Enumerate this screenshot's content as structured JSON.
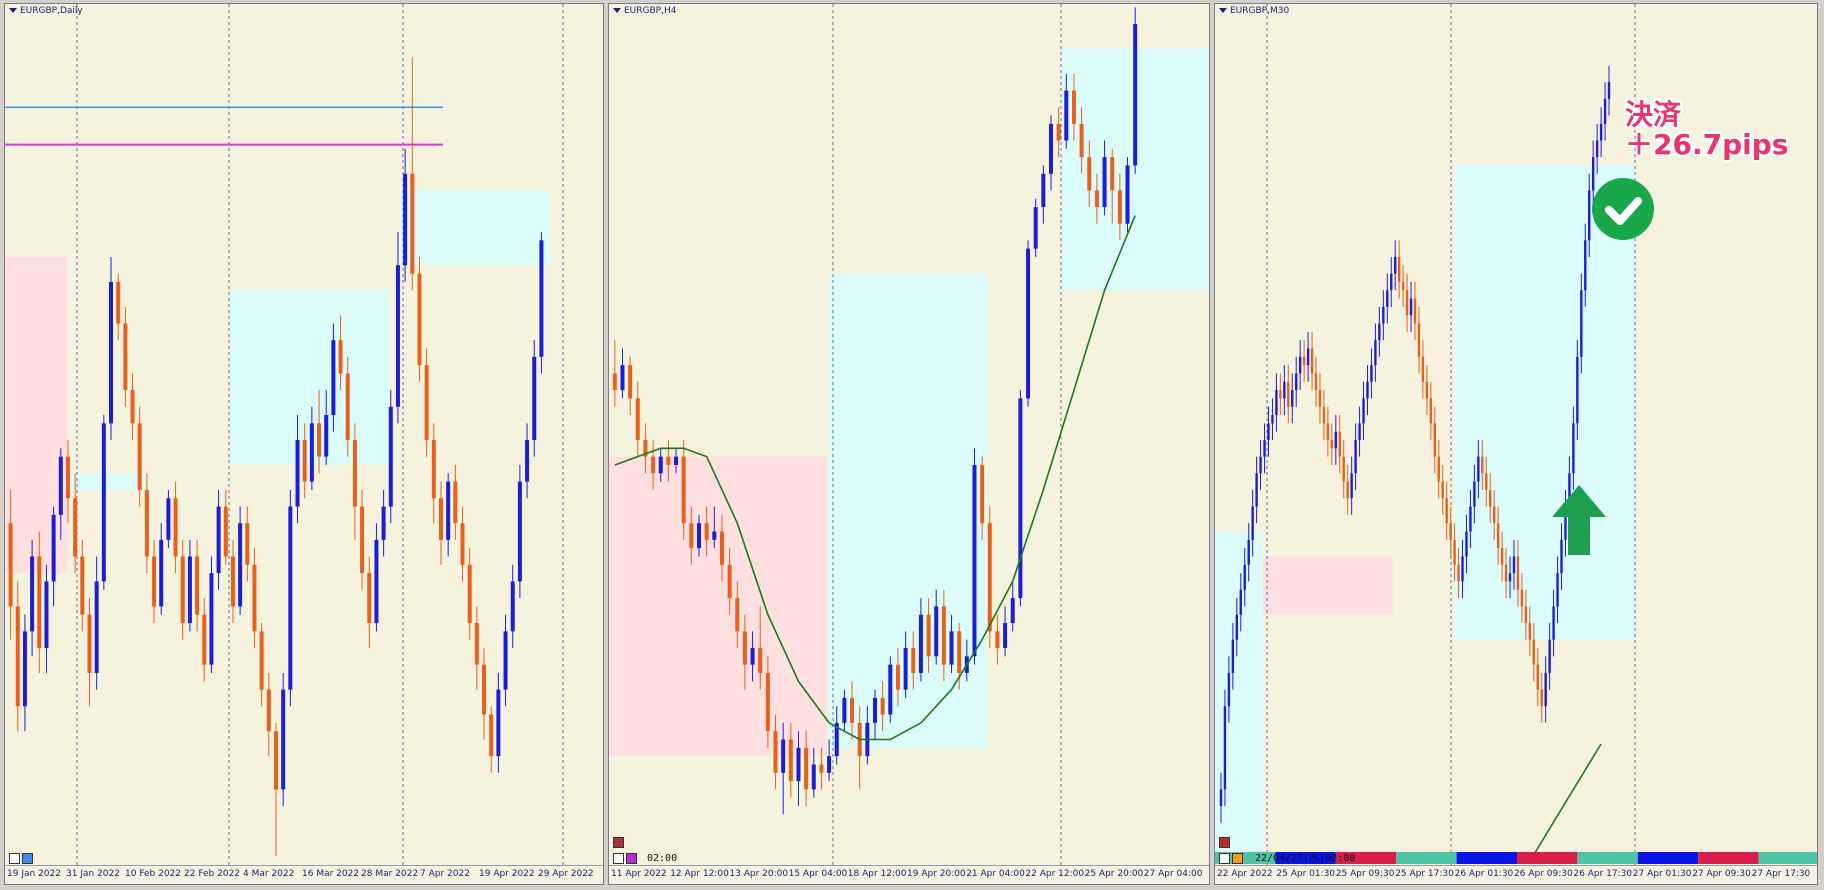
{
  "colors": {
    "bg": "#f5f3de",
    "bull": "#1d1dd8",
    "bear": "#e8601c",
    "zone_blue": "#dcfbfb",
    "zone_red": "#fde0df",
    "ma": "#1a7a1a",
    "hline_blue": "#3b8fe8",
    "hline_magenta": "#d63ad6"
  },
  "charts": [
    {
      "title": "EURGBP,Daily",
      "ticks": [
        "19 Jan 2022",
        "31 Jan 2022",
        "10 Feb 2022",
        "22 Feb 2022",
        "4 Mar 2022",
        "16 Mar 2022",
        "28 Mar 2022",
        "7 Apr 2022",
        "19 Apr 2022",
        "29 Apr 2022"
      ]
    },
    {
      "title": "EURGBP,H4",
      "ticks": [
        "11 Apr 2022",
        "12 Apr 12:00",
        "13 Apr 20:00",
        "15 Apr 04:00",
        "18 Apr 12:00",
        "19 Apr 20:00",
        "21 Apr 04:00",
        "22 Apr 12:00",
        "25 Apr 20:00",
        "27 Apr 04:00"
      ],
      "time_label": "02:00"
    },
    {
      "title": "EURGBP,M30",
      "ticks": [
        "22 Apr 2022",
        "25 Apr 01:30",
        "25 Apr 09:30",
        "25 Apr 17:30",
        "26 Apr 01:30",
        "26 Apr 09:30",
        "26 Apr 17:30",
        "27 Apr 01:30",
        "27 Apr 09:30",
        "27 Apr 17:30"
      ],
      "time_label": "22/04/27(水)02:00"
    }
  ],
  "annotation": {
    "line1": "決済",
    "line2": "＋26.7pips"
  },
  "chart_data": [
    {
      "type": "candlestick",
      "title": "EURGBP,Daily",
      "x_ticks": [
        "19 Jan 2022",
        "31 Jan 2022",
        "10 Feb 2022",
        "22 Feb 2022",
        "4 Mar 2022",
        "16 Mar 2022",
        "28 Mar 2022",
        "7 Apr 2022",
        "19 Apr 2022",
        "29 Apr 2022"
      ],
      "ohlc": [
        [
          0.4,
          0.3,
          0.44,
          0.26
        ],
        [
          0.3,
          0.18,
          0.33,
          0.15
        ],
        [
          0.18,
          0.27,
          0.29,
          0.15
        ],
        [
          0.27,
          0.36,
          0.38,
          0.24
        ],
        [
          0.36,
          0.25,
          0.39,
          0.22
        ],
        [
          0.25,
          0.33,
          0.35,
          0.22
        ],
        [
          0.33,
          0.41,
          0.42,
          0.3
        ],
        [
          0.41,
          0.48,
          0.49,
          0.38
        ],
        [
          0.48,
          0.43,
          0.5,
          0.4
        ],
        [
          0.43,
          0.36,
          0.46,
          0.34
        ],
        [
          0.36,
          0.29,
          0.38,
          0.27
        ],
        [
          0.29,
          0.22,
          0.31,
          0.18
        ],
        [
          0.22,
          0.33,
          0.36,
          0.2
        ],
        [
          0.33,
          0.52,
          0.53,
          0.32
        ],
        [
          0.52,
          0.69,
          0.72,
          0.5
        ],
        [
          0.69,
          0.64,
          0.7,
          0.62
        ],
        [
          0.64,
          0.56,
          0.66,
          0.54
        ],
        [
          0.56,
          0.52,
          0.58,
          0.5
        ],
        [
          0.52,
          0.44,
          0.54,
          0.42
        ],
        [
          0.44,
          0.36,
          0.46,
          0.34
        ],
        [
          0.36,
          0.3,
          0.38,
          0.28
        ],
        [
          0.3,
          0.38,
          0.4,
          0.29
        ],
        [
          0.38,
          0.43,
          0.44,
          0.37
        ],
        [
          0.43,
          0.36,
          0.45,
          0.34
        ],
        [
          0.36,
          0.28,
          0.38,
          0.26
        ],
        [
          0.28,
          0.36,
          0.38,
          0.27
        ],
        [
          0.36,
          0.29,
          0.38,
          0.27
        ],
        [
          0.29,
          0.23,
          0.31,
          0.21
        ],
        [
          0.23,
          0.34,
          0.36,
          0.22
        ],
        [
          0.34,
          0.42,
          0.44,
          0.32
        ],
        [
          0.42,
          0.36,
          0.44,
          0.35
        ],
        [
          0.36,
          0.3,
          0.38,
          0.28
        ],
        [
          0.3,
          0.4,
          0.42,
          0.29
        ],
        [
          0.4,
          0.35,
          0.42,
          0.33
        ],
        [
          0.35,
          0.27,
          0.37,
          0.25
        ],
        [
          0.27,
          0.2,
          0.28,
          0.18
        ],
        [
          0.2,
          0.15,
          0.22,
          0.12
        ],
        [
          0.15,
          0.08,
          0.16,
          0.0
        ],
        [
          0.08,
          0.2,
          0.22,
          0.06
        ],
        [
          0.2,
          0.42,
          0.44,
          0.18
        ],
        [
          0.42,
          0.5,
          0.53,
          0.4
        ],
        [
          0.5,
          0.45,
          0.52,
          0.43
        ],
        [
          0.45,
          0.52,
          0.54,
          0.44
        ],
        [
          0.52,
          0.48,
          0.56,
          0.46
        ],
        [
          0.48,
          0.53,
          0.56,
          0.47
        ],
        [
          0.53,
          0.62,
          0.64,
          0.51
        ],
        [
          0.62,
          0.58,
          0.65,
          0.56
        ],
        [
          0.58,
          0.5,
          0.6,
          0.48
        ],
        [
          0.5,
          0.42,
          0.52,
          0.38
        ],
        [
          0.42,
          0.34,
          0.44,
          0.32
        ],
        [
          0.34,
          0.28,
          0.36,
          0.25
        ],
        [
          0.28,
          0.38,
          0.4,
          0.27
        ],
        [
          0.38,
          0.42,
          0.44,
          0.36
        ],
        [
          0.42,
          0.54,
          0.56,
          0.4
        ],
        [
          0.54,
          0.71,
          0.75,
          0.52
        ],
        [
          0.71,
          0.82,
          0.85,
          0.69
        ],
        [
          0.82,
          0.7,
          0.96,
          0.68
        ],
        [
          0.7,
          0.59,
          0.72,
          0.57
        ],
        [
          0.59,
          0.5,
          0.61,
          0.48
        ],
        [
          0.5,
          0.43,
          0.52,
          0.4
        ],
        [
          0.43,
          0.38,
          0.45,
          0.35
        ],
        [
          0.38,
          0.45,
          0.46,
          0.36
        ],
        [
          0.45,
          0.4,
          0.47,
          0.38
        ],
        [
          0.4,
          0.35,
          0.42,
          0.33
        ],
        [
          0.35,
          0.28,
          0.37,
          0.26
        ],
        [
          0.28,
          0.23,
          0.3,
          0.2
        ],
        [
          0.23,
          0.17,
          0.25,
          0.14
        ],
        [
          0.17,
          0.12,
          0.18,
          0.1
        ],
        [
          0.12,
          0.2,
          0.22,
          0.1
        ],
        [
          0.2,
          0.27,
          0.29,
          0.18
        ],
        [
          0.27,
          0.33,
          0.35,
          0.25
        ],
        [
          0.33,
          0.45,
          0.47,
          0.31
        ],
        [
          0.45,
          0.5,
          0.52,
          0.43
        ],
        [
          0.5,
          0.6,
          0.62,
          0.48
        ],
        [
          0.6,
          0.74,
          0.75,
          0.58
        ]
      ],
      "hlines": [
        0.9,
        0.855
      ]
    },
    {
      "type": "candlestick",
      "title": "EURGBP,H4",
      "x_ticks": [
        "11 Apr 2022",
        "12 Apr 12:00",
        "13 Apr 20:00",
        "15 Apr 04:00",
        "18 Apr 12:00",
        "19 Apr 20:00",
        "21 Apr 04:00",
        "22 Apr 12:00",
        "25 Apr 20:00",
        "27 Apr 04:00"
      ],
      "ohlc": [
        [
          0.58,
          0.56,
          0.62,
          0.54
        ],
        [
          0.56,
          0.59,
          0.61,
          0.55
        ],
        [
          0.59,
          0.55,
          0.6,
          0.53
        ],
        [
          0.55,
          0.5,
          0.57,
          0.48
        ],
        [
          0.5,
          0.48,
          0.52,
          0.46
        ],
        [
          0.48,
          0.46,
          0.5,
          0.44
        ],
        [
          0.46,
          0.48,
          0.49,
          0.45
        ],
        [
          0.48,
          0.47,
          0.5,
          0.45
        ],
        [
          0.47,
          0.48,
          0.49,
          0.46
        ],
        [
          0.48,
          0.4,
          0.5,
          0.38
        ],
        [
          0.4,
          0.37,
          0.42,
          0.35
        ],
        [
          0.37,
          0.4,
          0.41,
          0.36
        ],
        [
          0.4,
          0.38,
          0.42,
          0.36
        ],
        [
          0.38,
          0.39,
          0.42,
          0.37
        ],
        [
          0.39,
          0.35,
          0.41,
          0.33
        ],
        [
          0.35,
          0.31,
          0.37,
          0.29
        ],
        [
          0.31,
          0.27,
          0.33,
          0.25
        ],
        [
          0.27,
          0.23,
          0.29,
          0.2
        ],
        [
          0.23,
          0.25,
          0.27,
          0.21
        ],
        [
          0.25,
          0.22,
          0.3,
          0.2
        ],
        [
          0.22,
          0.15,
          0.24,
          0.13
        ],
        [
          0.15,
          0.1,
          0.17,
          0.08
        ],
        [
          0.1,
          0.14,
          0.16,
          0.05
        ],
        [
          0.14,
          0.09,
          0.16,
          0.07
        ],
        [
          0.09,
          0.13,
          0.15,
          0.06
        ],
        [
          0.13,
          0.08,
          0.15,
          0.06
        ],
        [
          0.08,
          0.11,
          0.13,
          0.07
        ],
        [
          0.11,
          0.1,
          0.13,
          0.08
        ],
        [
          0.1,
          0.12,
          0.14,
          0.09
        ],
        [
          0.12,
          0.16,
          0.18,
          0.11
        ],
        [
          0.16,
          0.19,
          0.2,
          0.15
        ],
        [
          0.19,
          0.16,
          0.21,
          0.14
        ],
        [
          0.16,
          0.12,
          0.18,
          0.08
        ],
        [
          0.12,
          0.16,
          0.18,
          0.11
        ],
        [
          0.16,
          0.19,
          0.2,
          0.14
        ],
        [
          0.19,
          0.17,
          0.21,
          0.15
        ],
        [
          0.17,
          0.23,
          0.24,
          0.16
        ],
        [
          0.23,
          0.2,
          0.25,
          0.18
        ],
        [
          0.2,
          0.25,
          0.27,
          0.19
        ],
        [
          0.25,
          0.22,
          0.27,
          0.2
        ],
        [
          0.22,
          0.29,
          0.31,
          0.21
        ],
        [
          0.29,
          0.24,
          0.31,
          0.22
        ],
        [
          0.24,
          0.3,
          0.32,
          0.23
        ],
        [
          0.3,
          0.23,
          0.32,
          0.21
        ],
        [
          0.23,
          0.27,
          0.29,
          0.22
        ],
        [
          0.27,
          0.22,
          0.28,
          0.2
        ],
        [
          0.22,
          0.24,
          0.26,
          0.21
        ],
        [
          0.24,
          0.47,
          0.49,
          0.23
        ],
        [
          0.47,
          0.4,
          0.48,
          0.38
        ],
        [
          0.4,
          0.27,
          0.42,
          0.25
        ],
        [
          0.27,
          0.25,
          0.29,
          0.23
        ],
        [
          0.25,
          0.28,
          0.3,
          0.24
        ],
        [
          0.28,
          0.31,
          0.33,
          0.27
        ],
        [
          0.31,
          0.55,
          0.56,
          0.3
        ],
        [
          0.55,
          0.73,
          0.74,
          0.54
        ],
        [
          0.73,
          0.78,
          0.79,
          0.72
        ],
        [
          0.78,
          0.82,
          0.83,
          0.76
        ],
        [
          0.82,
          0.88,
          0.89,
          0.8
        ],
        [
          0.88,
          0.86,
          0.9,
          0.84
        ],
        [
          0.86,
          0.92,
          0.94,
          0.85
        ],
        [
          0.92,
          0.88,
          0.94,
          0.86
        ],
        [
          0.88,
          0.84,
          0.9,
          0.82
        ],
        [
          0.84,
          0.8,
          0.86,
          0.78
        ],
        [
          0.8,
          0.78,
          0.82,
          0.76
        ],
        [
          0.78,
          0.84,
          0.86,
          0.77
        ],
        [
          0.84,
          0.8,
          0.85,
          0.76
        ],
        [
          0.8,
          0.76,
          0.82,
          0.74
        ],
        [
          0.76,
          0.83,
          0.84,
          0.75
        ],
        [
          0.83,
          1.0,
          1.02,
          0.82
        ]
      ],
      "ma": [
        [
          0,
          0.47
        ],
        [
          6,
          0.49
        ],
        [
          9,
          0.49
        ],
        [
          12,
          0.48
        ],
        [
          16,
          0.4
        ],
        [
          20,
          0.29
        ],
        [
          24,
          0.21
        ],
        [
          28,
          0.16
        ],
        [
          32,
          0.14
        ],
        [
          36,
          0.14
        ],
        [
          40,
          0.16
        ],
        [
          44,
          0.2
        ],
        [
          48,
          0.26
        ],
        [
          52,
          0.33
        ],
        [
          56,
          0.44
        ],
        [
          60,
          0.56
        ],
        [
          64,
          0.68
        ],
        [
          68,
          0.77
        ]
      ]
    },
    {
      "type": "candlestick",
      "title": "EURGBP,M30",
      "x_ticks": [
        "22 Apr 2022",
        "25 Apr 01:30",
        "25 Apr 09:30",
        "25 Apr 17:30",
        "26 Apr 01:30",
        "26 Apr 09:30",
        "26 Apr 17:30",
        "27 Apr 01:30",
        "27 Apr 09:30",
        "27 Apr 17:30"
      ],
      "closes": [
        0.08,
        0.18,
        0.22,
        0.26,
        0.29,
        0.32,
        0.35,
        0.38,
        0.42,
        0.46,
        0.48,
        0.5,
        0.52,
        0.53,
        0.56,
        0.55,
        0.57,
        0.54,
        0.56,
        0.58,
        0.6,
        0.59,
        0.61,
        0.58,
        0.56,
        0.54,
        0.52,
        0.5,
        0.49,
        0.51,
        0.48,
        0.45,
        0.43,
        0.46,
        0.5,
        0.52,
        0.55,
        0.57,
        0.59,
        0.62,
        0.64,
        0.66,
        0.68,
        0.7,
        0.72,
        0.69,
        0.68,
        0.65,
        0.67,
        0.64,
        0.6,
        0.57,
        0.55,
        0.52,
        0.48,
        0.45,
        0.43,
        0.4,
        0.38,
        0.35,
        0.33,
        0.36,
        0.39,
        0.42,
        0.45,
        0.48,
        0.46,
        0.44,
        0.42,
        0.4,
        0.37,
        0.35,
        0.33,
        0.34,
        0.36,
        0.32,
        0.3,
        0.28,
        0.26,
        0.23,
        0.2,
        0.18,
        0.22,
        0.26,
        0.3,
        0.34,
        0.38,
        0.42,
        0.46,
        0.52,
        0.6,
        0.68,
        0.74,
        0.8,
        0.84,
        0.86,
        0.88,
        0.91,
        0.93
      ]
    }
  ]
}
